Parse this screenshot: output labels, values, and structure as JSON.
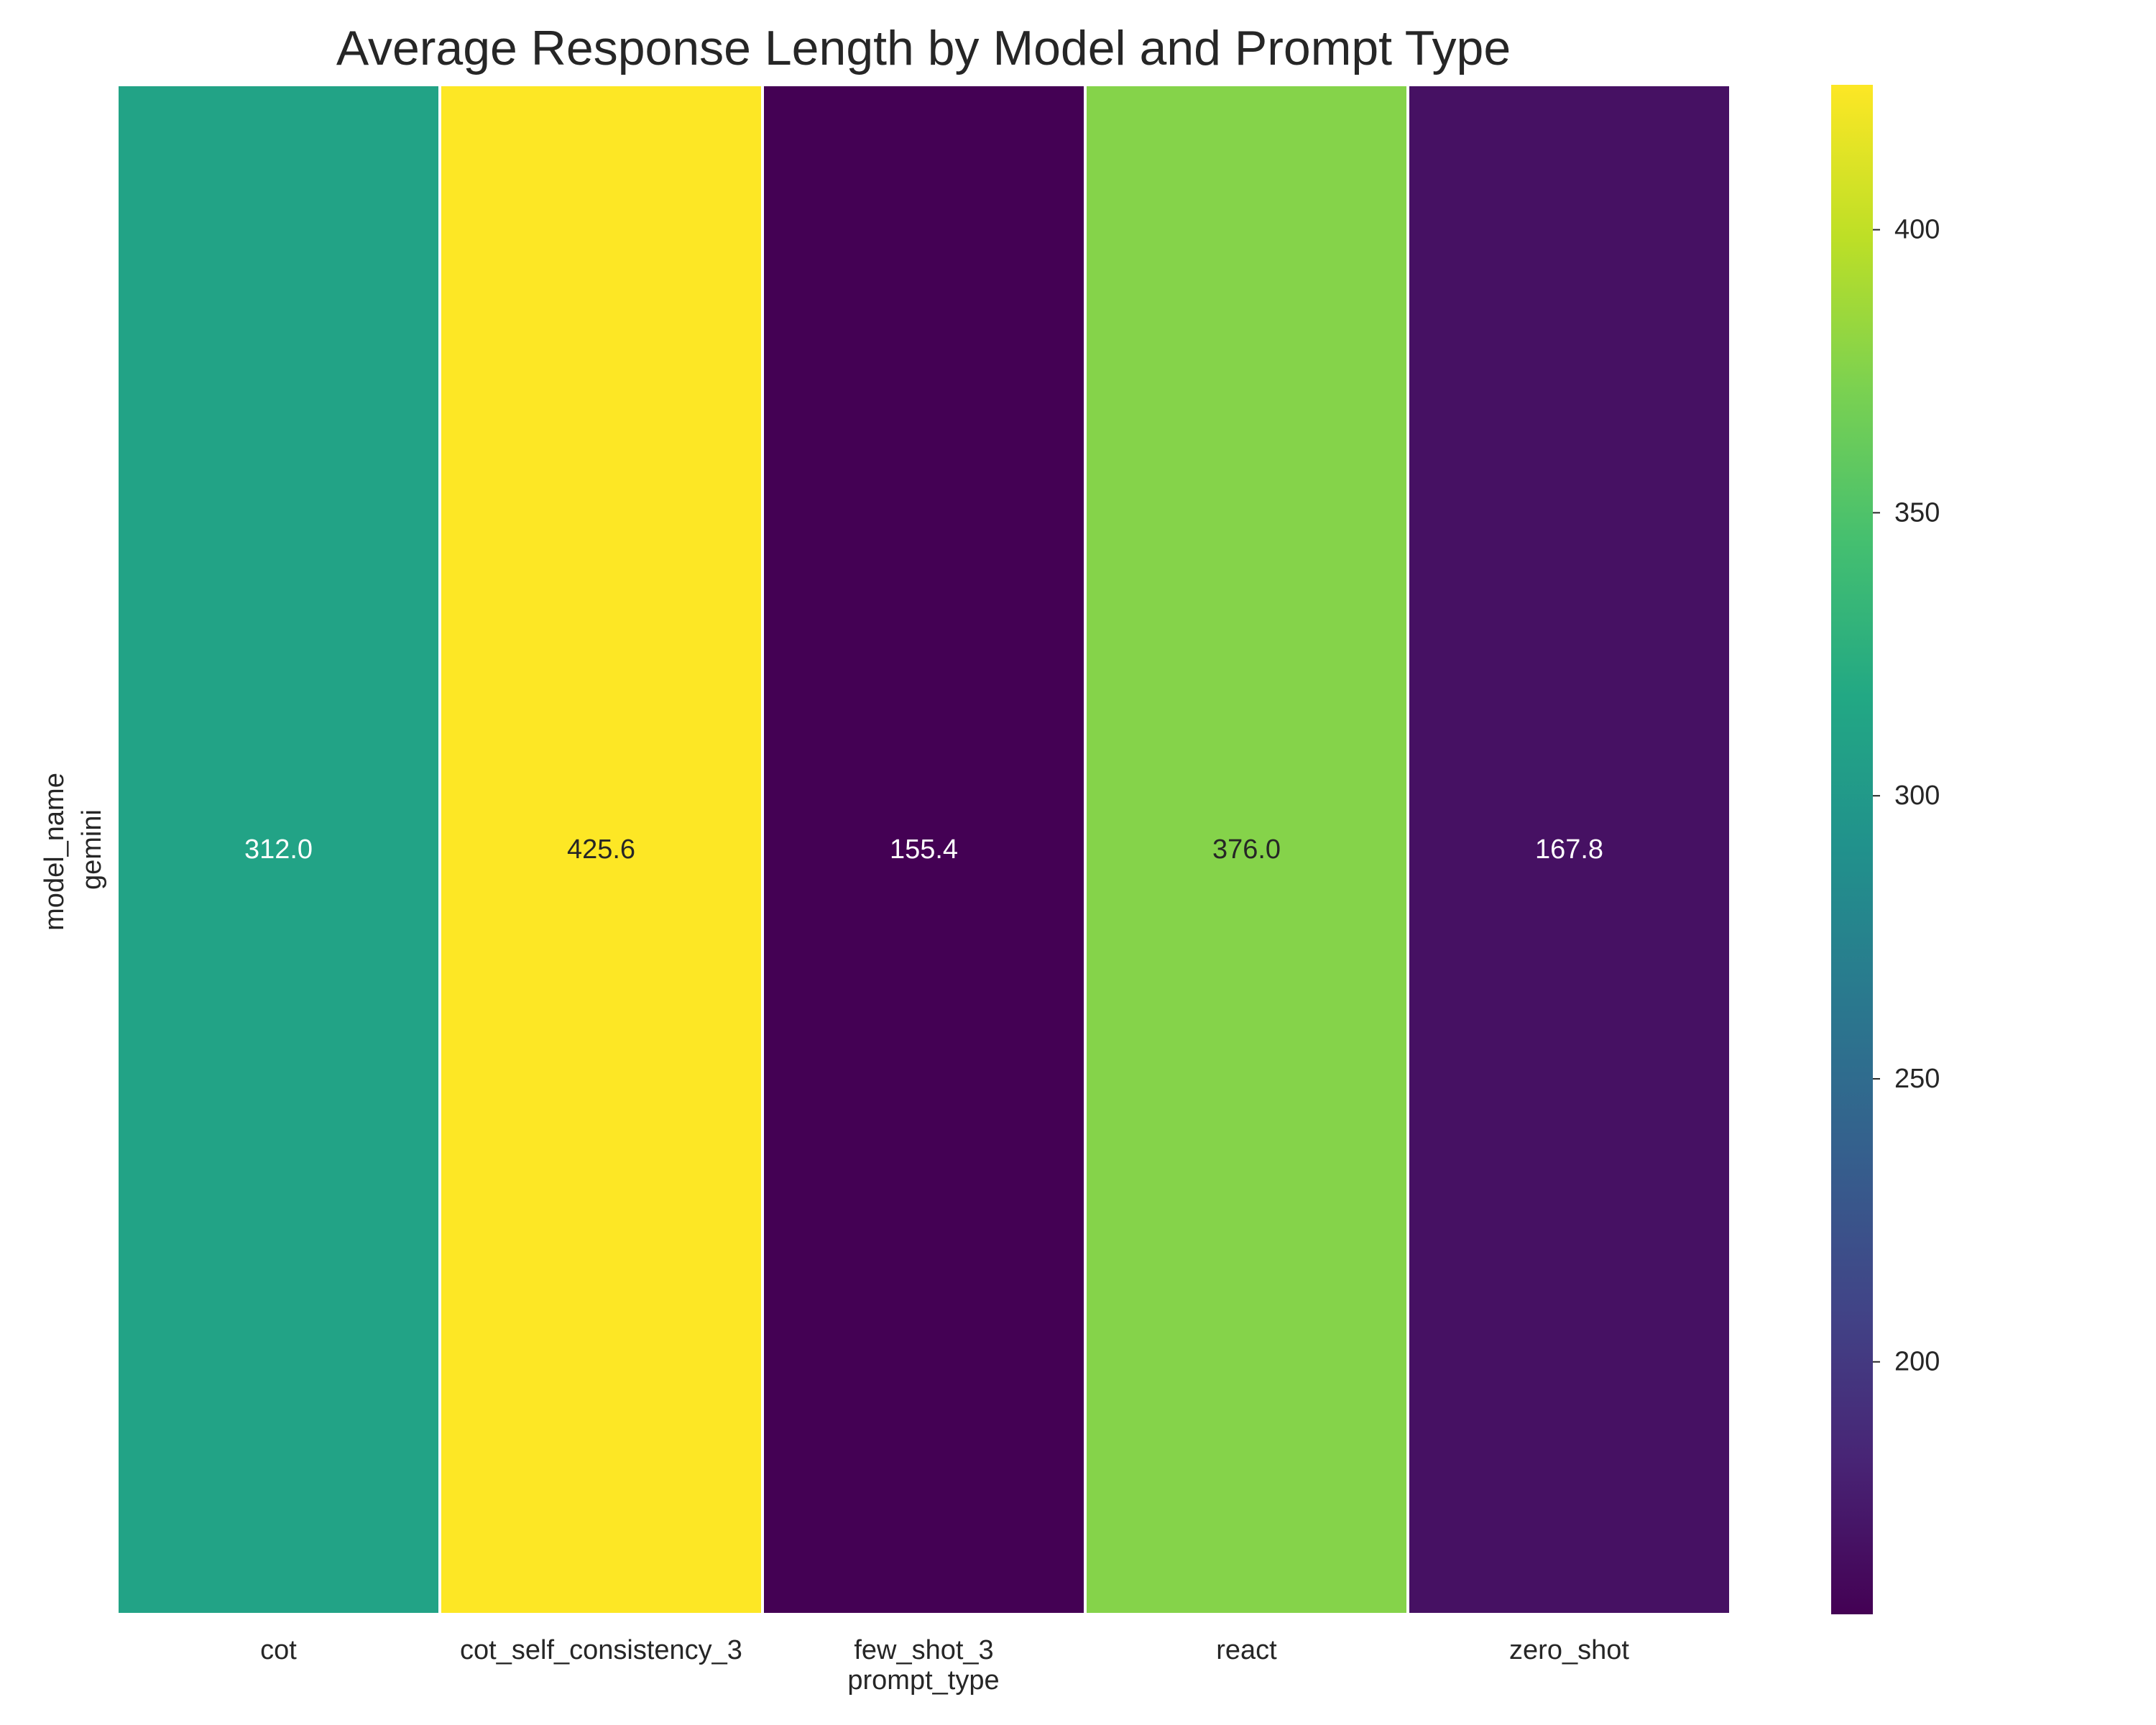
{
  "chart_data": {
    "type": "heatmap",
    "title": "Average Response Length by Model and Prompt Type",
    "xlabel": "prompt_type",
    "ylabel": "model_name",
    "x_categories": [
      "cot",
      "cot_self_consistency_3",
      "few_shot_3",
      "react",
      "zero_shot"
    ],
    "y_categories": [
      "gemini"
    ],
    "values": [
      [
        312.0,
        425.6,
        155.4,
        376.0,
        167.8
      ]
    ],
    "value_labels": [
      [
        "312.0",
        "425.6",
        "155.4",
        "376.0",
        "167.8"
      ]
    ],
    "colormap": "viridis",
    "vmin": 155.4,
    "vmax": 425.6,
    "colorbar": {
      "ticks": [
        200,
        250,
        300,
        350,
        400
      ],
      "tick_labels": [
        "200",
        "250",
        "300",
        "350",
        "400"
      ],
      "placement": "right"
    },
    "grid": false
  }
}
